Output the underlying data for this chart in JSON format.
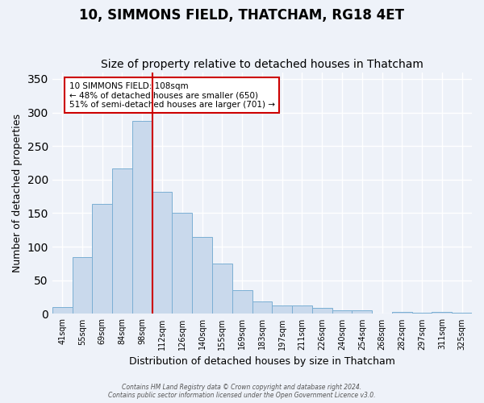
{
  "title": "10, SIMMONS FIELD, THATCHAM, RG18 4ET",
  "subtitle": "Size of property relative to detached houses in Thatcham",
  "xlabel": "Distribution of detached houses by size in Thatcham",
  "ylabel": "Number of detached properties",
  "bin_labels": [
    "41sqm",
    "55sqm",
    "69sqm",
    "84sqm",
    "98sqm",
    "112sqm",
    "126sqm",
    "140sqm",
    "155sqm",
    "169sqm",
    "183sqm",
    "197sqm",
    "211sqm",
    "226sqm",
    "240sqm",
    "254sqm",
    "268sqm",
    "282sqm",
    "297sqm",
    "311sqm",
    "325sqm"
  ],
  "bar_values": [
    10,
    84,
    164,
    217,
    287,
    182,
    150,
    114,
    75,
    35,
    18,
    13,
    12,
    9,
    5,
    5,
    1,
    3,
    2,
    3,
    2
  ],
  "bar_color": "#c9d9ec",
  "bar_edge_color": "#7bafd4",
  "marker_bin_index": 4,
  "marker_color": "#cc0000",
  "ylim": [
    0,
    360
  ],
  "yticks": [
    0,
    50,
    100,
    150,
    200,
    250,
    300,
    350
  ],
  "annotation_text": "10 SIMMONS FIELD: 108sqm\n← 48% of detached houses are smaller (650)\n51% of semi-detached houses are larger (701) →",
  "annotation_box_color": "#ffffff",
  "annotation_box_edge_color": "#cc0000",
  "footer_text": "Contains HM Land Registry data © Crown copyright and database right 2024.\nContains public sector information licensed under the Open Government Licence v3.0.",
  "background_color": "#eef2f9",
  "grid_color": "#ffffff",
  "title_fontsize": 12,
  "subtitle_fontsize": 10,
  "xlabel_fontsize": 9,
  "ylabel_fontsize": 9
}
